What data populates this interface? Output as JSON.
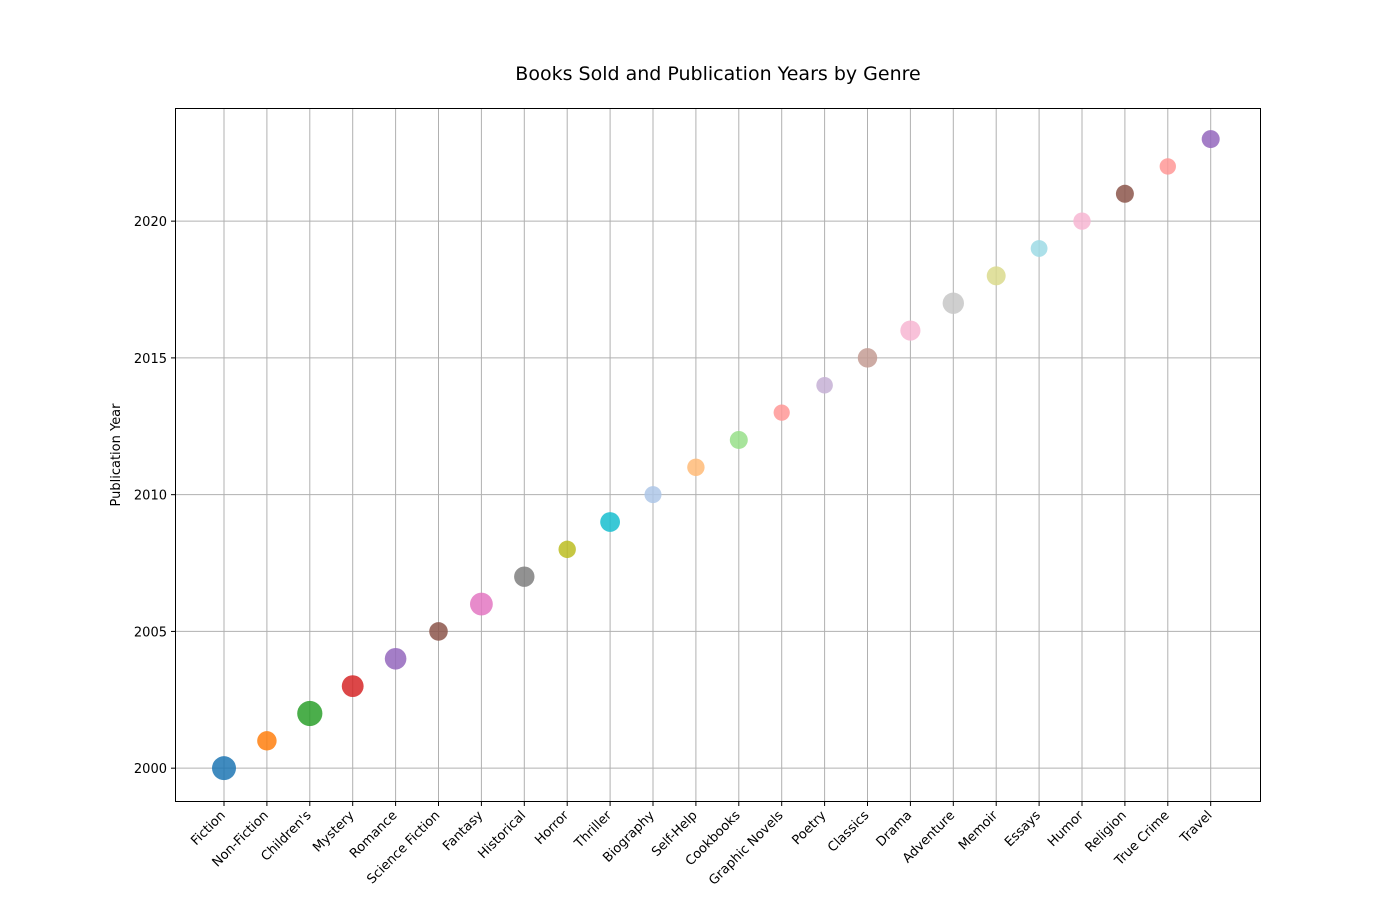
{
  "chart_data": {
    "type": "scatter",
    "title": "Books Sold and Publication Years by Genre",
    "xlabel": "",
    "ylabel": "Publication Year",
    "categories": [
      "Fiction",
      "Non-Fiction",
      "Children's",
      "Mystery",
      "Romance",
      "Science Fiction",
      "Fantasy",
      "Historical",
      "Horror",
      "Thriller",
      "Biography",
      "Self-Help",
      "Cookbooks",
      "Graphic Novels",
      "Poetry",
      "Classics",
      "Drama",
      "Adventure",
      "Memoir",
      "Essays",
      "Humor",
      "Religion",
      "True Crime",
      "Travel"
    ],
    "y": [
      2000,
      2001,
      2002,
      2003,
      2004,
      2005,
      2006,
      2007,
      2008,
      2009,
      2010,
      2011,
      2012,
      2013,
      2014,
      2015,
      2016,
      2017,
      2018,
      2019,
      2020,
      2021,
      2022,
      2023
    ],
    "relative_size": [
      1.0,
      0.62,
      1.1,
      0.82,
      0.8,
      0.55,
      0.9,
      0.7,
      0.45,
      0.65,
      0.42,
      0.45,
      0.5,
      0.35,
      0.38,
      0.62,
      0.68,
      0.78,
      0.58,
      0.4,
      0.45,
      0.5,
      0.36,
      0.5
    ],
    "colors": [
      "#1f77b4",
      "#ff7f0e",
      "#2ca02c",
      "#d62728",
      "#9467bd",
      "#8c564b",
      "#e377c2",
      "#7f7f7f",
      "#bcbd22",
      "#17becf",
      "#aec7e8",
      "#ffbb78",
      "#98df8a",
      "#ff9896",
      "#c5b0d5",
      "#c49c94",
      "#f7b6d2",
      "#c7c7c7",
      "#dbdb8d",
      "#9edae5",
      "#f7b6d2",
      "#8c564b",
      "#ff9896",
      "#9467bd"
    ],
    "ylim": [
      1998.8,
      2024.1
    ],
    "yticks": [
      2000,
      2005,
      2010,
      2015,
      2020
    ],
    "grid": true,
    "legend": "none"
  }
}
